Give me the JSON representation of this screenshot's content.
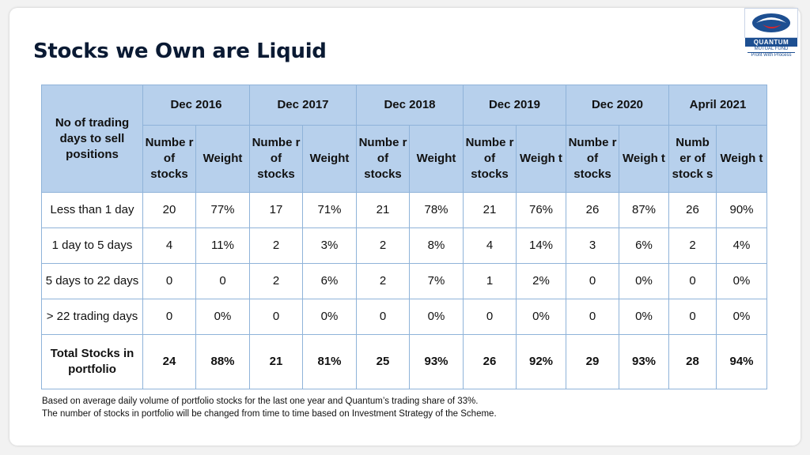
{
  "title": "Stocks we Own are Liquid",
  "logo": {
    "name": "QUANTUM",
    "sub": "MUTUAL FUND",
    "tagline": "Profit With Process",
    "brand_color": "#1d4f91",
    "accent_color": "#d9252a"
  },
  "table": {
    "corner_label": "No of trading days to sell positions",
    "periods": [
      "Dec 2016",
      "Dec 2017",
      "Dec 2018",
      "Dec 2019",
      "Dec 2020",
      "April 2021"
    ],
    "sub_headers": [
      [
        "Numbe r of stocks",
        "Weight"
      ],
      [
        "Numbe r of stocks",
        "Weight"
      ],
      [
        "Numbe r of stocks",
        "Weight"
      ],
      [
        "Numbe r of stocks",
        "Weigh t"
      ],
      [
        "Numbe r of stocks",
        "Weigh t"
      ],
      [
        "Numb er of stock s",
        "Weigh t"
      ]
    ],
    "rows": [
      {
        "label": "Less than 1 day",
        "values": [
          "20",
          "77%",
          "17",
          "71%",
          "21",
          "78%",
          "21",
          "76%",
          "26",
          "87%",
          "26",
          "90%"
        ]
      },
      {
        "label": "1 day to 5 days",
        "values": [
          "4",
          "11%",
          "2",
          "3%",
          "2",
          "8%",
          "4",
          "14%",
          "3",
          "6%",
          "2",
          "4%"
        ]
      },
      {
        "label": "5 days to 22 days",
        "values": [
          "0",
          "0",
          "2",
          "6%",
          "2",
          "7%",
          "1",
          "2%",
          "0",
          "0%",
          "0",
          "0%"
        ]
      },
      {
        "label": "> 22 trading days",
        "values": [
          "0",
          "0%",
          "0",
          "0%",
          "0",
          "0%",
          "0",
          "0%",
          "0",
          "0%",
          "0",
          "0%"
        ]
      },
      {
        "label": "Total Stocks in portfolio",
        "values": [
          "24",
          "88%",
          "21",
          "81%",
          "25",
          "93%",
          "26",
          "92%",
          "29",
          "93%",
          "28",
          "94%"
        ]
      }
    ],
    "header_color": "#b7d0ec",
    "border_color": "#8fb3d9"
  },
  "notes": [
    "Based on average daily volume of portfolio stocks for the last one  year and Quantum’s trading share of  33%.",
    "The number of stocks in portfolio will be changed from time to time based on Investment Strategy of the Scheme."
  ]
}
